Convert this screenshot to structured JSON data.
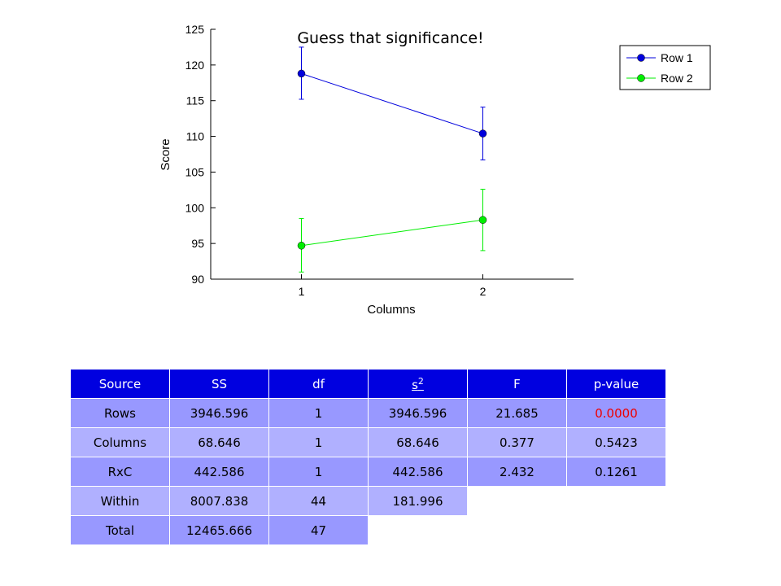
{
  "chart_data": {
    "type": "line",
    "title": "Guess that significance!",
    "xlabel": "Columns",
    "ylabel": "Score",
    "categories": [
      "1",
      "2"
    ],
    "x": [
      1,
      2
    ],
    "xlim": [
      0.5,
      2.5
    ],
    "ylim": [
      90,
      125
    ],
    "yticks": [
      90,
      95,
      100,
      105,
      110,
      115,
      120,
      125
    ],
    "grid": false,
    "legend_position": "top-right",
    "series": [
      {
        "name": "Row 1",
        "color": "#0000dd",
        "values": [
          118.8,
          110.4
        ],
        "err_low": [
          115.2,
          106.7
        ],
        "err_high": [
          122.5,
          114.1
        ]
      },
      {
        "name": "Row 2",
        "color": "#00ee00",
        "values": [
          94.7,
          98.3
        ],
        "err_low": [
          91.0,
          94.0
        ],
        "err_high": [
          98.5,
          102.6
        ]
      }
    ]
  },
  "table": {
    "headers": [
      "Source",
      "SS",
      "df",
      "s",
      "F",
      "p-value"
    ],
    "s2_superscript": "2",
    "rows": [
      [
        "Rows",
        "3946.596",
        "1",
        "3946.596",
        "21.685",
        "0.0000"
      ],
      [
        "Columns",
        "68.646",
        "1",
        "68.646",
        "0.377",
        "0.5423"
      ],
      [
        "RxC",
        "442.586",
        "1",
        "442.586",
        "2.432",
        "0.1261"
      ],
      [
        "Within",
        "8007.838",
        "44",
        "181.996"
      ],
      [
        "Total",
        "12465.666",
        "47"
      ]
    ],
    "highlight_color": "#ee0000"
  }
}
